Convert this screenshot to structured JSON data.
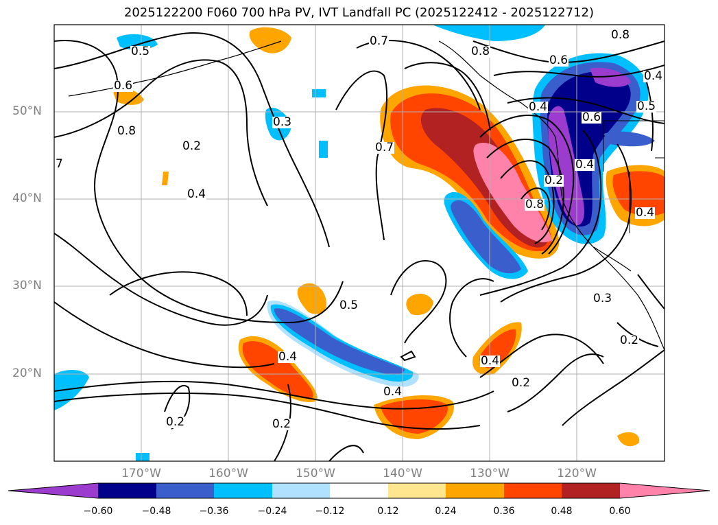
{
  "title": "2025122200 F060 700 hPa PV, IVT Landfall PC (2025122412 - 2025122712)",
  "lat_labels": [
    "50°N",
    "40°N",
    "30°N",
    "20°N"
  ],
  "lon_labels": [
    "170°W",
    "160°W",
    "150°W",
    "140°W",
    "130°W",
    "120°W"
  ],
  "contour_labels": [
    "0.8",
    "0.6",
    "0.4",
    "0.5",
    "0.6",
    "0.8",
    "0.7",
    "0.5",
    "0.3",
    "0.2",
    "0.4",
    "0.7",
    "0.6",
    "0.5",
    "0.4",
    "0.4",
    "0.2",
    "0.2",
    "0.4",
    "0.4",
    "0.2",
    "0.3",
    "0.2",
    "0.8",
    "0.4",
    "0.8",
    "0.4",
    "0.2",
    "7"
  ],
  "colorbar": {
    "ticks": [
      "−0.60",
      "−0.48",
      "−0.36",
      "−0.24",
      "−0.12",
      "0.12",
      "0.24",
      "0.36",
      "0.48",
      "0.60"
    ],
    "colors": [
      "#9b3ccf",
      "#00008b",
      "#3a5fcd",
      "#00bfff",
      "#b0e2ff",
      "#ffffff",
      "#ffe68f",
      "#ffa500",
      "#ff4500",
      "#b22222",
      "#ff82ab"
    ]
  }
}
